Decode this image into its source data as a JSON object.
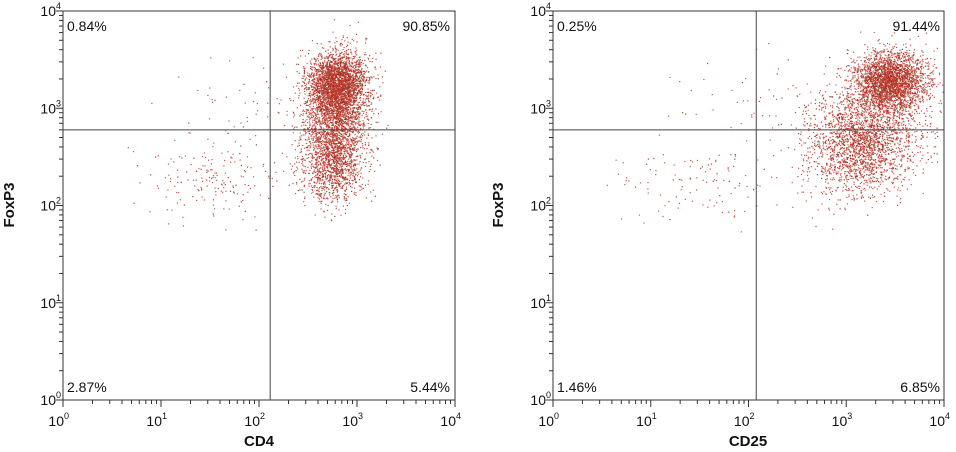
{
  "chart_data": [
    {
      "type": "scatter",
      "xlabel": "CD4",
      "ylabel": "FoxP3",
      "xscale": "log",
      "yscale": "log",
      "xlim": [
        1,
        10000
      ],
      "ylim": [
        1,
        10000
      ],
      "tick_labels": [
        {
          "base": "10",
          "exp": "0"
        },
        {
          "base": "10",
          "exp": "1"
        },
        {
          "base": "10",
          "exp": "2"
        },
        {
          "base": "10",
          "exp": "3"
        },
        {
          "base": "10",
          "exp": "4"
        }
      ],
      "gate": {
        "x": 130,
        "y": 600
      },
      "quadrants": {
        "upper_left": "0.84%",
        "upper_right": "90.85%",
        "lower_left": "2.87%",
        "lower_right": "5.44%"
      },
      "populations": [
        {
          "x_center": 630,
          "y_center": 1800,
          "sx_decades": 0.15,
          "sy_decades": 0.17,
          "n": 2700
        },
        {
          "x_center": 560,
          "y_center": 280,
          "sx_decades": 0.16,
          "sy_decades": 0.2,
          "n": 1300
        },
        {
          "x_center": 600,
          "y_center": 750,
          "sx_decades": 0.17,
          "sy_decades": 0.2,
          "n": 1200
        },
        {
          "x_center": 35,
          "y_center": 180,
          "sx_decades": 0.35,
          "sy_decades": 0.2,
          "n": 170
        },
        {
          "x_center": 90,
          "y_center": 900,
          "sx_decades": 0.4,
          "sy_decades": 0.3,
          "n": 60
        }
      ],
      "point_color": "#c0392b",
      "grid": false
    },
    {
      "type": "scatter",
      "xlabel": "CD25",
      "ylabel": "FoxP3",
      "xscale": "log",
      "yscale": "log",
      "xlim": [
        1,
        10000
      ],
      "ylim": [
        1,
        10000
      ],
      "tick_labels": [
        {
          "base": "10",
          "exp": "0"
        },
        {
          "base": "10",
          "exp": "1"
        },
        {
          "base": "10",
          "exp": "2"
        },
        {
          "base": "10",
          "exp": "3"
        },
        {
          "base": "10",
          "exp": "4"
        }
      ],
      "gate": {
        "x": 120,
        "y": 600
      },
      "quadrants": {
        "upper_left": "0.25%",
        "upper_right": "91.44%",
        "lower_left": "1.46%",
        "lower_right": "6.85%"
      },
      "populations": [
        {
          "x_center": 2800,
          "y_center": 1900,
          "sx_decades": 0.18,
          "sy_decades": 0.15,
          "n": 2600
        },
        {
          "x_center": 1600,
          "y_center": 600,
          "sx_decades": 0.3,
          "sy_decades": 0.22,
          "n": 1700
        },
        {
          "x_center": 1300,
          "y_center": 250,
          "sx_decades": 0.25,
          "sy_decades": 0.18,
          "n": 700
        },
        {
          "x_center": 25,
          "y_center": 160,
          "sx_decades": 0.45,
          "sy_decades": 0.2,
          "n": 110
        },
        {
          "x_center": 150,
          "y_center": 1200,
          "sx_decades": 0.5,
          "sy_decades": 0.25,
          "n": 60
        }
      ],
      "point_color": "#c0392b",
      "grid": false
    }
  ]
}
